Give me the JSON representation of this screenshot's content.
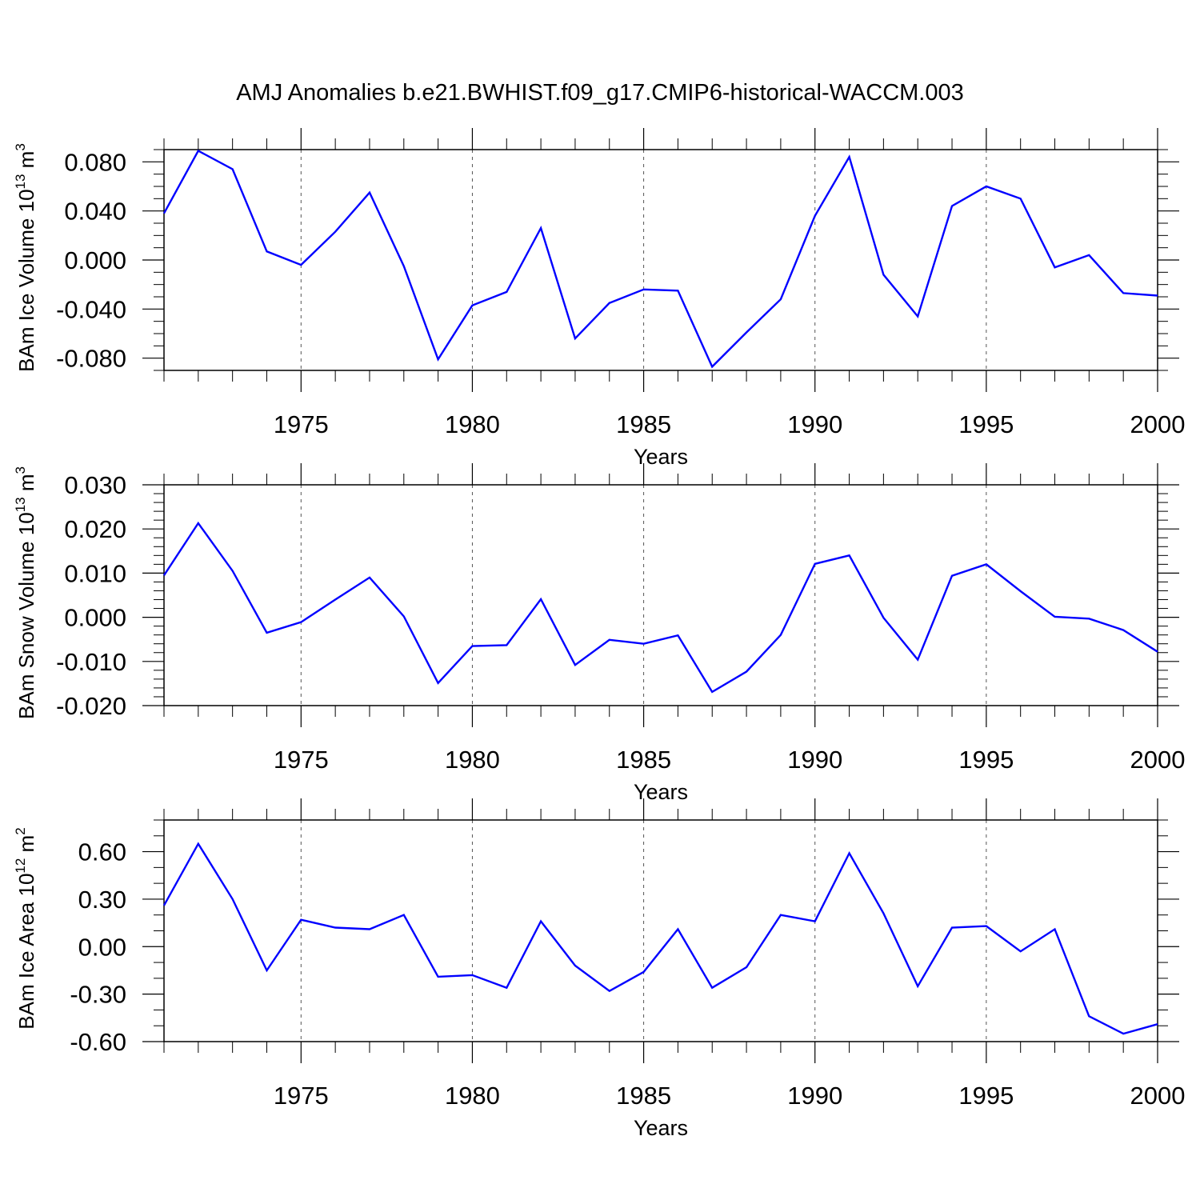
{
  "title": "AMJ Anomalies b.e21.BWHIST.f09_g17.CMIP6-historical-WACCM.003",
  "line_color": "#0000ff",
  "chart_data": [
    {
      "type": "line",
      "ylabel_main": "BAm Ice Volume 10",
      "ylabel_exp": "13",
      "ylabel_unit": " m",
      "ylabel_unit_exp": "3",
      "xlabel": "Years",
      "xlim": [
        1971,
        2000
      ],
      "ylim": [
        -0.09,
        0.09
      ],
      "yticks": [
        -0.08,
        -0.04,
        0.0,
        0.04,
        0.08
      ],
      "ytick_labels": [
        "-0.080",
        "-0.040",
        "0.000",
        "0.040",
        "0.080"
      ],
      "yminor_step": 0.01,
      "xticks": [
        1975,
        1980,
        1985,
        1990,
        1995,
        2000
      ],
      "xtick_labels": [
        "1975",
        "1980",
        "1985",
        "1990",
        "1995",
        "2000"
      ],
      "x": [
        1971,
        1972,
        1973,
        1974,
        1975,
        1976,
        1977,
        1978,
        1979,
        1980,
        1981,
        1982,
        1983,
        1984,
        1985,
        1986,
        1987,
        1988,
        1989,
        1990,
        1991,
        1992,
        1993,
        1994,
        1995,
        1996,
        1997,
        1998,
        1999,
        2000
      ],
      "values": [
        0.038,
        0.089,
        0.074,
        0.007,
        -0.004,
        0.023,
        0.055,
        -0.005,
        -0.081,
        -0.037,
        -0.026,
        0.026,
        -0.064,
        -0.035,
        -0.024,
        -0.025,
        -0.087,
        -0.059,
        -0.032,
        0.036,
        0.084,
        -0.012,
        -0.046,
        0.044,
        0.06,
        0.05,
        -0.006,
        0.004,
        -0.027,
        -0.029
      ]
    },
    {
      "type": "line",
      "ylabel_main": "BAm Snow Volume 10",
      "ylabel_exp": "13",
      "ylabel_unit": " m",
      "ylabel_unit_exp": "3",
      "xlabel": "Years",
      "xlim": [
        1971,
        2000
      ],
      "ylim": [
        -0.02,
        0.03
      ],
      "yticks": [
        -0.02,
        -0.01,
        0.0,
        0.01,
        0.02,
        0.03
      ],
      "ytick_labels": [
        "-0.020",
        "-0.010",
        "0.000",
        "0.010",
        "0.020",
        "0.030"
      ],
      "yminor_step": 0.002,
      "xticks": [
        1975,
        1980,
        1985,
        1990,
        1995,
        2000
      ],
      "xtick_labels": [
        "1975",
        "1980",
        "1985",
        "1990",
        "1995",
        "2000"
      ],
      "x": [
        1971,
        1972,
        1973,
        1974,
        1975,
        1976,
        1977,
        1978,
        1979,
        1980,
        1981,
        1982,
        1983,
        1984,
        1985,
        1986,
        1987,
        1988,
        1989,
        1990,
        1991,
        1992,
        1993,
        1994,
        1995,
        1996,
        1997,
        1998,
        1999,
        2000
      ],
      "values": [
        0.0095,
        0.0213,
        0.0105,
        -0.0035,
        -0.0011,
        0.004,
        0.009,
        0.0002,
        -0.0149,
        -0.0065,
        -0.0063,
        0.0041,
        -0.0108,
        -0.0051,
        -0.006,
        -0.0041,
        -0.0169,
        -0.0123,
        -0.004,
        0.0121,
        0.014,
        -0.0001,
        -0.0096,
        0.0094,
        0.012,
        0.0059,
        0.0001,
        -0.0003,
        -0.0029,
        -0.0078
      ]
    },
    {
      "type": "line",
      "ylabel_main": "BAm Ice Area 10",
      "ylabel_exp": "12",
      "ylabel_unit": " m",
      "ylabel_unit_exp": "2",
      "xlabel": "Years",
      "xlim": [
        1971,
        2000
      ],
      "ylim": [
        -0.6,
        0.8
      ],
      "yticks": [
        -0.6,
        -0.3,
        0.0,
        0.3,
        0.6
      ],
      "ytick_labels": [
        "-0.60",
        "-0.30",
        "0.00",
        "0.30",
        "0.60"
      ],
      "yminor_step": 0.1,
      "xticks": [
        1975,
        1980,
        1985,
        1990,
        1995,
        2000
      ],
      "xtick_labels": [
        "1975",
        "1980",
        "1985",
        "1990",
        "1995",
        "2000"
      ],
      "x": [
        1971,
        1972,
        1973,
        1974,
        1975,
        1976,
        1977,
        1978,
        1979,
        1980,
        1981,
        1982,
        1983,
        1984,
        1985,
        1986,
        1987,
        1988,
        1989,
        1990,
        1991,
        1992,
        1993,
        1994,
        1995,
        1996,
        1997,
        1998,
        1999,
        2000
      ],
      "values": [
        0.26,
        0.65,
        0.3,
        -0.15,
        0.17,
        0.12,
        0.11,
        0.2,
        -0.19,
        -0.18,
        -0.26,
        0.16,
        -0.12,
        -0.28,
        -0.16,
        0.11,
        -0.26,
        -0.13,
        0.2,
        0.16,
        0.59,
        0.21,
        -0.25,
        0.12,
        0.13,
        -0.03,
        0.11,
        -0.44,
        -0.55,
        -0.49
      ]
    }
  ]
}
